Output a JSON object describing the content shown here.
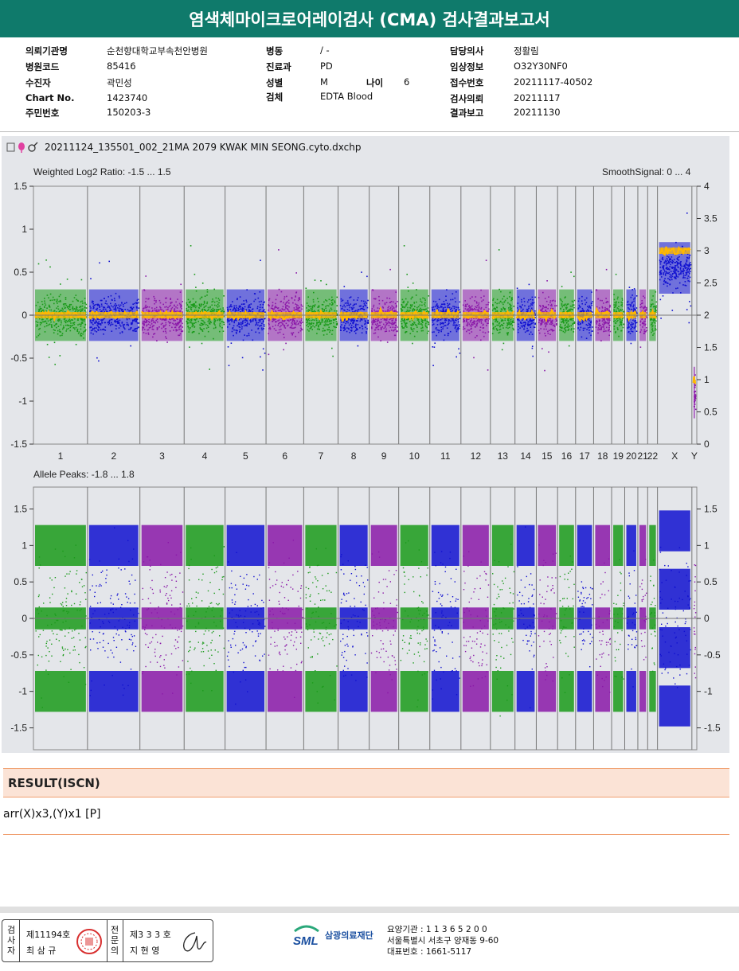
{
  "title": "염색체마이크로어레이검사 (CMA) 검사결과보고서",
  "info": {
    "col1": [
      {
        "k": "의뢰기관명",
        "v": "순천향대학교부속천안병원"
      },
      {
        "k": "병원코드",
        "v": "85416"
      },
      {
        "k": "수진자",
        "v": "곽민성"
      },
      {
        "k": "Chart No.",
        "v": "1423740"
      },
      {
        "k": "주민번호",
        "v": "150203-3"
      }
    ],
    "col2": [
      {
        "k": "병동",
        "v": "/ -"
      },
      {
        "k": "진료과",
        "v": "PD"
      },
      {
        "k": "성별",
        "v": "M"
      },
      {
        "k": "검체",
        "v": "EDTA Blood"
      }
    ],
    "age_label": "나이",
    "age_value": "6",
    "col3": [
      {
        "k": "담당의사",
        "v": "정활림"
      },
      {
        "k": "임상정보",
        "v": "O32Y30NF0"
      },
      {
        "k": "접수번호",
        "v": "20211117-40502"
      },
      {
        "k": "검사의뢰",
        "v": "20211117"
      },
      {
        "k": "결과보고",
        "v": "20211130"
      }
    ]
  },
  "chart": {
    "filename": "20211124_135501_002_21MA 2079 KWAK MIN SEONG.cyto.dxchp",
    "top_label": "Weighted Log2 Ratio: -1.5 ... 1.5",
    "top_right_label": "SmoothSignal: 0 ... 4",
    "bottom_label": "Allele Peaks: -1.8 ... 1.8",
    "colors": {
      "green": "#1a9a1a",
      "blue": "#1010d0",
      "purple": "#8a18a8",
      "orange": "#ffb800"
    }
  },
  "chart_data": {
    "type": "scatter",
    "title": "20211124_135501_002_21MA 2079 KWAK MIN SEONG.cyto.dxchp",
    "chromosomes": [
      "1",
      "2",
      "3",
      "4",
      "5",
      "6",
      "7",
      "8",
      "9",
      "10",
      "11",
      "12",
      "13",
      "14",
      "15",
      "16",
      "17",
      "18",
      "19",
      "20",
      "21",
      "22",
      "X",
      "Y"
    ],
    "chromosome_colors": [
      "green",
      "blue",
      "purple",
      "green",
      "blue",
      "purple",
      "green",
      "blue",
      "purple",
      "green",
      "blue",
      "purple",
      "green",
      "blue",
      "purple",
      "green",
      "blue",
      "purple",
      "green",
      "blue",
      "purple",
      "green",
      "blue",
      "purple"
    ],
    "log2_ratio": {
      "label": "Weighted Log2 Ratio",
      "ylim": [
        -1.5,
        1.5
      ],
      "left_ticks": [
        "1.5",
        "1",
        "0.5",
        "0",
        "-0.5",
        "-1",
        "-1.5"
      ],
      "left_tick_values": [
        1.5,
        1,
        0.5,
        0,
        -0.5,
        -1,
        -1.5
      ],
      "smooth_signal_ylim": [
        0,
        4
      ],
      "right_ticks": [
        "4",
        "3.5",
        "3",
        "2.5",
        "2",
        "1.5",
        "1",
        "0.5",
        "0"
      ],
      "right_tick_values": [
        4,
        3.5,
        3,
        2.5,
        2,
        1.5,
        1,
        0.5,
        0
      ],
      "median_log2": [
        0,
        0,
        0,
        0,
        0,
        0,
        0,
        0,
        0,
        0,
        0,
        0,
        0,
        0,
        0,
        0,
        0,
        0,
        0,
        0,
        0,
        0,
        0.55,
        -0.9
      ],
      "smooth_signal": [
        2,
        2,
        2,
        2,
        2,
        2,
        2,
        2,
        2,
        2,
        2,
        2,
        2,
        2,
        2,
        2,
        2,
        2,
        2,
        2,
        2,
        2,
        3,
        1
      ]
    },
    "allele_peaks": {
      "label": "Allele Peaks",
      "ylim": [
        -1.8,
        1.8
      ],
      "left_ticks": [
        "1.5",
        "1",
        "0.5",
        "0",
        "-0.5",
        "-1",
        "-1.5"
      ],
      "right_ticks": [
        "1.5",
        "1",
        "0.5",
        "0",
        "-0.5",
        "-1",
        "-1.5"
      ],
      "tick_values": [
        1.5,
        1,
        0.5,
        0,
        -0.5,
        -1,
        -1.5
      ],
      "peaks_autosomes": [
        -1,
        0,
        1
      ],
      "peaks_X": [
        -1.2,
        -0.4,
        0.4,
        1.2
      ]
    }
  },
  "result": {
    "heading": "RESULT(ISCN)",
    "text": "arr(X)x3,(Y)x1 [P]"
  },
  "footer": {
    "examiner_label": [
      "검",
      "사",
      "자"
    ],
    "examiner_no": "제11194호",
    "examiner_name": "최 삼 규",
    "specialist_label": [
      "전",
      "문",
      "의"
    ],
    "specialist_no": "제3 3 3 호",
    "specialist_name": "지 현 영",
    "logo": "SML",
    "org_name": "삼광의료재단",
    "addr1": "요양기관 : 1 1 3 6 5 2 0 0",
    "addr2": "서울특별시 서초구 양재동 9-60",
    "addr3": "대표번호 : 1661-5117"
  }
}
